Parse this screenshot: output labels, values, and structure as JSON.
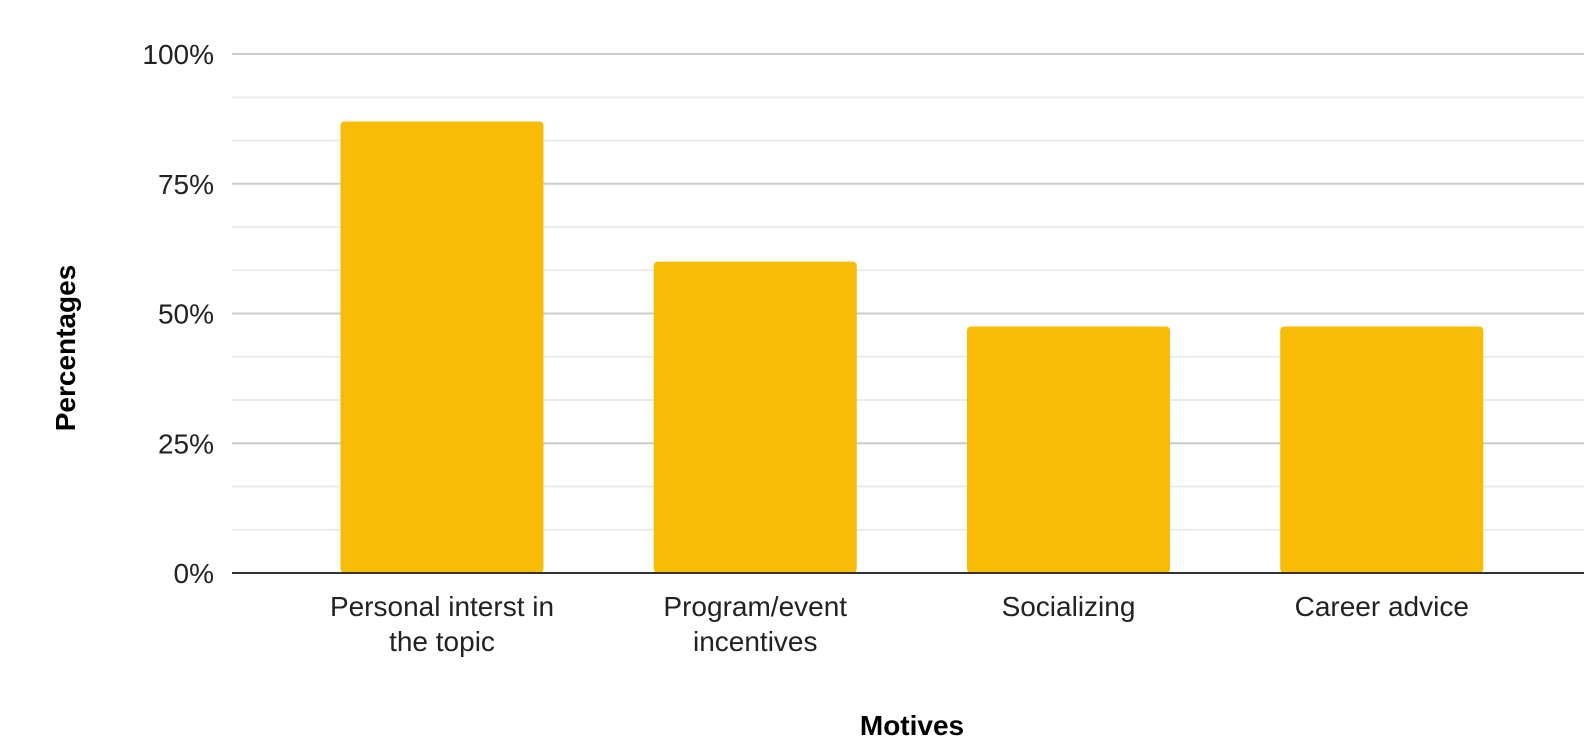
{
  "chart_data": {
    "type": "bar",
    "categories": [
      [
        "Personal interst in",
        "the topic"
      ],
      [
        "Program/event",
        "incentives"
      ],
      [
        "Socializing"
      ],
      [
        "Career advice"
      ]
    ],
    "values": [
      87,
      60,
      47.5,
      47.5
    ],
    "xlabel": "Motives",
    "ylabel": "Percentages",
    "ylim": [
      0,
      100
    ],
    "yticks": [
      0,
      25,
      50,
      75,
      100
    ],
    "ytick_labels": [
      "0%",
      "25%",
      "50%",
      "75%",
      "100%"
    ],
    "grid": true,
    "bar_color": "#F9BC06"
  }
}
